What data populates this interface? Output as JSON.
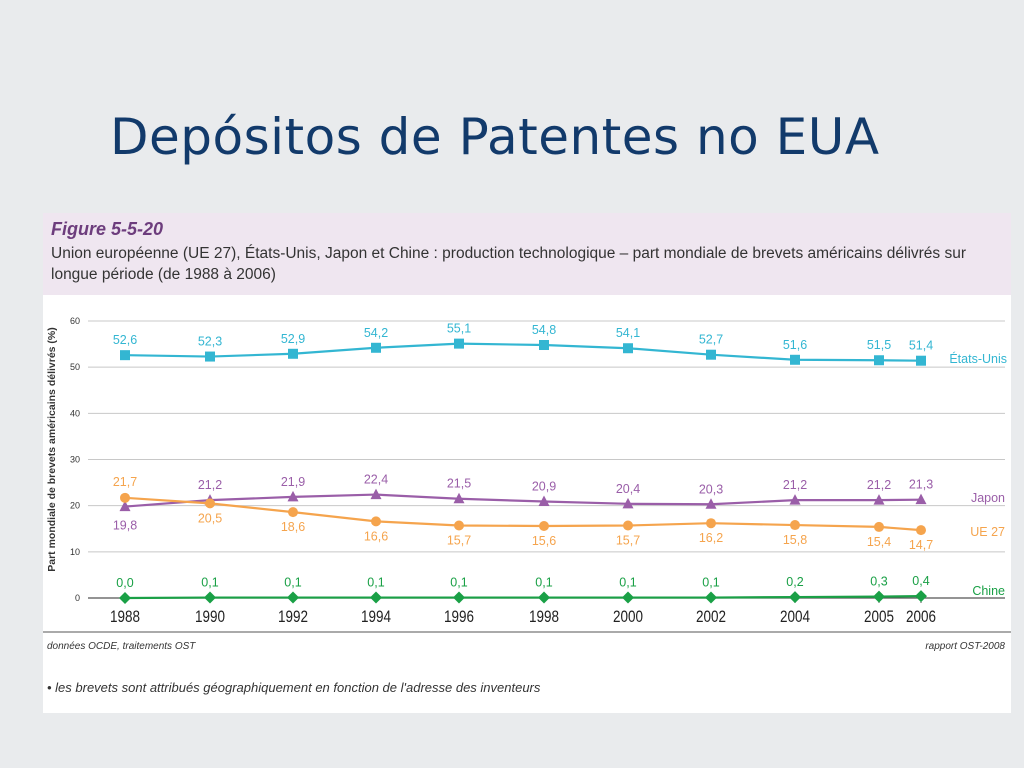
{
  "slide": {
    "title": "Depósitos de Patentes no EUA"
  },
  "figure": {
    "number": "Figure 5-5-20",
    "caption": "Union européenne (UE 27), États-Unis, Japon et Chine : production technologique – part mondiale de brevets américains délivrés sur longue période (de 1988 à 2006)",
    "source_left": "données OCDE, traitements OST",
    "source_right": "rapport OST-2008",
    "footnote": "• les brevets sont attribués géographiquement en fonction de l'adresse des inventeurs"
  },
  "chart_data": {
    "type": "line",
    "title": "Figure 5-5-20",
    "ylabel": "Part mondiale de brevets américains délivrés (%)",
    "xlabel": "",
    "ylim": [
      0,
      60
    ],
    "yticks": [
      0,
      10,
      20,
      30,
      40,
      50,
      60
    ],
    "grid": true,
    "legend": "right, inline labels",
    "categories": [
      "1988",
      "1990",
      "1992",
      "1994",
      "1996",
      "1998",
      "2000",
      "2002",
      "2004",
      "2005",
      "2006"
    ],
    "series": [
      {
        "name": "États-Unis",
        "color": "#33b6d2",
        "marker": "square",
        "values": [
          52.6,
          52.3,
          52.9,
          54.2,
          55.1,
          54.8,
          54.1,
          52.7,
          51.6,
          51.5,
          51.4
        ],
        "labels": [
          "52,6",
          "52,3",
          "52,9",
          "54,2",
          "55,1",
          "54,8",
          "54,1",
          "52,7",
          "51,6",
          "51,5",
          "51,4"
        ]
      },
      {
        "name": "Japon",
        "color": "#9a5ea8",
        "marker": "triangle",
        "values": [
          19.8,
          21.2,
          21.9,
          22.4,
          21.5,
          20.9,
          20.4,
          20.3,
          21.2,
          21.2,
          21.3
        ],
        "labels": [
          "19,8",
          "21,2",
          "21,9",
          "22,4",
          "21,5",
          "20,9",
          "20,4",
          "20,3",
          "21,2",
          "21,2",
          "21,3"
        ]
      },
      {
        "name": "UE 27",
        "color": "#f5a44d",
        "marker": "circle",
        "values": [
          21.7,
          20.5,
          18.6,
          16.6,
          15.7,
          15.6,
          15.7,
          16.2,
          15.8,
          15.4,
          14.7
        ],
        "labels": [
          "21,7",
          "20,5",
          "18,6",
          "16,6",
          "15,7",
          "15,6",
          "15,7",
          "16,2",
          "15,8",
          "15,4",
          "14,7"
        ]
      },
      {
        "name": "Chine",
        "color": "#1aa046",
        "marker": "diamond",
        "values": [
          0.0,
          0.1,
          0.1,
          0.1,
          0.1,
          0.1,
          0.1,
          0.1,
          0.2,
          0.3,
          0.4
        ],
        "labels": [
          "0,0",
          "0,1",
          "0,1",
          "0,1",
          "0,1",
          "0,1",
          "0,1",
          "0,1",
          "0,2",
          "0,3",
          "0,4"
        ]
      }
    ]
  }
}
